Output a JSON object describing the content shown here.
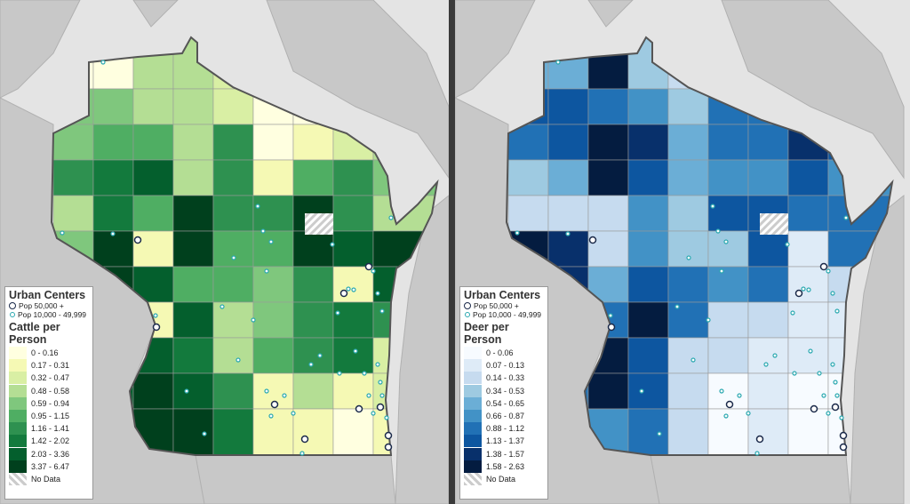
{
  "maps": [
    {
      "id": "cattle",
      "legend_title": "Cattle per Person",
      "classes": [
        "0 - 0.16",
        "0.17 - 0.31",
        "0.32 - 0.47",
        "0.48 - 0.58",
        "0.59 - 0.94",
        "0.95 - 1.15",
        "1.16 - 1.41",
        "1.42 - 2.02",
        "2.03 - 3.36",
        "3.37 - 6.47"
      ],
      "colors": [
        "#ffffe0",
        "#f5f9b4",
        "#d9efa4",
        "#b4de94",
        "#7fc77d",
        "#4fae63",
        "#2e9150",
        "#137a3d",
        "#045f2d",
        "#00401d"
      ],
      "grid": [
        [
          -1,
          0,
          3,
          3,
          2,
          0,
          0,
          0,
          -1
        ],
        [
          4,
          4,
          3,
          3,
          2,
          0,
          0,
          0,
          -1
        ],
        [
          4,
          5,
          5,
          3,
          6,
          0,
          1,
          2,
          3
        ],
        [
          6,
          7,
          8,
          3,
          6,
          1,
          5,
          6,
          4
        ],
        [
          3,
          7,
          5,
          9,
          6,
          6,
          9,
          6,
          3
        ],
        [
          4,
          9,
          1,
          9,
          5,
          5,
          9,
          8,
          9
        ],
        [
          8,
          9,
          8,
          5,
          5,
          4,
          6,
          1,
          8
        ],
        [
          -1,
          8,
          1,
          8,
          3,
          4,
          6,
          7,
          6
        ],
        [
          -1,
          8,
          8,
          7,
          3,
          5,
          6,
          7,
          2
        ],
        [
          -1,
          8,
          9,
          8,
          6,
          1,
          3,
          1,
          2
        ],
        [
          -1,
          -1,
          9,
          9,
          7,
          1,
          1,
          0,
          1
        ]
      ]
    },
    {
      "id": "deer",
      "legend_title": "Deer per Person",
      "classes": [
        "0 - 0.06",
        "0.07 - 0.13",
        "0.14 - 0.33",
        "0.34 - 0.53",
        "0.54 - 0.65",
        "0.66 - 0.87",
        "0.88 - 1.12",
        "1.13 - 1.37",
        "1.38 - 1.57",
        "1.58 - 2.63"
      ],
      "colors": [
        "#f7fbff",
        "#deebf7",
        "#c6dbef",
        "#9ecae1",
        "#6baed6",
        "#4292c6",
        "#2171b5",
        "#0d56a0",
        "#08306b",
        "#041c40"
      ],
      "grid": [
        [
          -1,
          4,
          9,
          3,
          2,
          6,
          6,
          6,
          -1
        ],
        [
          7,
          7,
          6,
          5,
          3,
          6,
          6,
          9,
          -1
        ],
        [
          6,
          7,
          9,
          8,
          4,
          6,
          6,
          8,
          7
        ],
        [
          3,
          4,
          9,
          7,
          4,
          5,
          5,
          7,
          5
        ],
        [
          2,
          2,
          2,
          5,
          3,
          7,
          7,
          6,
          6
        ],
        [
          9,
          8,
          2,
          5,
          3,
          3,
          7,
          1,
          6
        ],
        [
          9,
          8,
          4,
          7,
          6,
          5,
          6,
          1,
          2
        ],
        [
          -1,
          5,
          6,
          9,
          6,
          2,
          2,
          1,
          1
        ],
        [
          -1,
          6,
          9,
          7,
          2,
          2,
          1,
          1,
          1
        ],
        [
          -1,
          6,
          9,
          7,
          2,
          0,
          1,
          0,
          0
        ],
        [
          -1,
          -1,
          5,
          6,
          2,
          0,
          1,
          0,
          0
        ]
      ]
    }
  ],
  "legend": {
    "urban_title": "Urban Centers",
    "pop_large": "Pop 50,000 +",
    "pop_small": "Pop 10,000 - 49,999",
    "no_data": "No Data",
    "city_color": "#2aa8b0"
  }
}
